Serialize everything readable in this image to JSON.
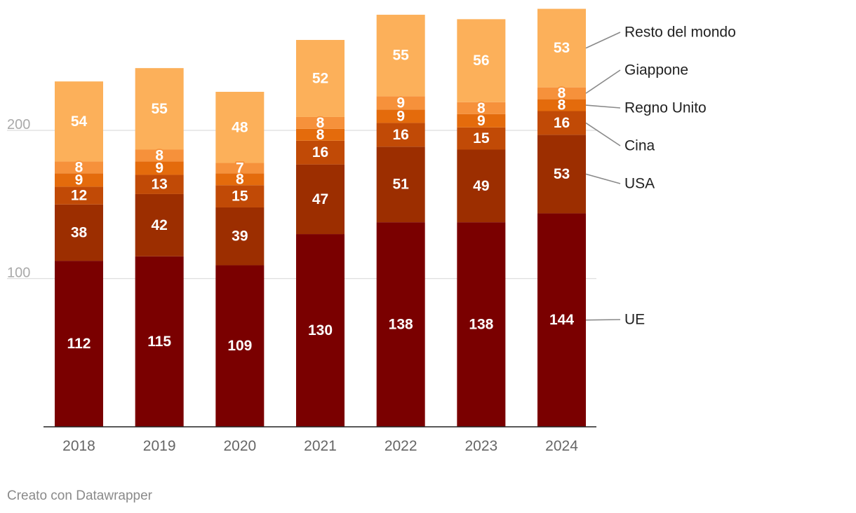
{
  "chart_data": {
    "type": "bar",
    "stacked": true,
    "categories": [
      "2018",
      "2019",
      "2020",
      "2021",
      "2022",
      "2023",
      "2024"
    ],
    "series": [
      {
        "name": "UE",
        "color": "#7a0000",
        "values": [
          112,
          115,
          109,
          130,
          138,
          138,
          144
        ]
      },
      {
        "name": "USA",
        "color": "#9c2e00",
        "values": [
          38,
          42,
          39,
          47,
          51,
          49,
          53
        ]
      },
      {
        "name": "Cina",
        "color": "#c14a06",
        "values": [
          12,
          13,
          15,
          16,
          16,
          15,
          16
        ]
      },
      {
        "name": "Regno Unito",
        "color": "#e46b0c",
        "values": [
          9,
          9,
          8,
          8,
          9,
          9,
          8
        ]
      },
      {
        "name": "Giappone",
        "color": "#f6913b",
        "values": [
          8,
          8,
          7,
          8,
          9,
          8,
          8
        ]
      },
      {
        "name": "Resto del mondo",
        "color": "#fcb05a",
        "values": [
          54,
          55,
          48,
          52,
          55,
          56,
          53
        ]
      }
    ],
    "y_ticks": [
      100,
      200
    ],
    "ylim": [
      0,
      285
    ],
    "grid": true,
    "legend": "right, direct labels"
  },
  "footer": {
    "credit": "Creato con Datawrapper"
  }
}
